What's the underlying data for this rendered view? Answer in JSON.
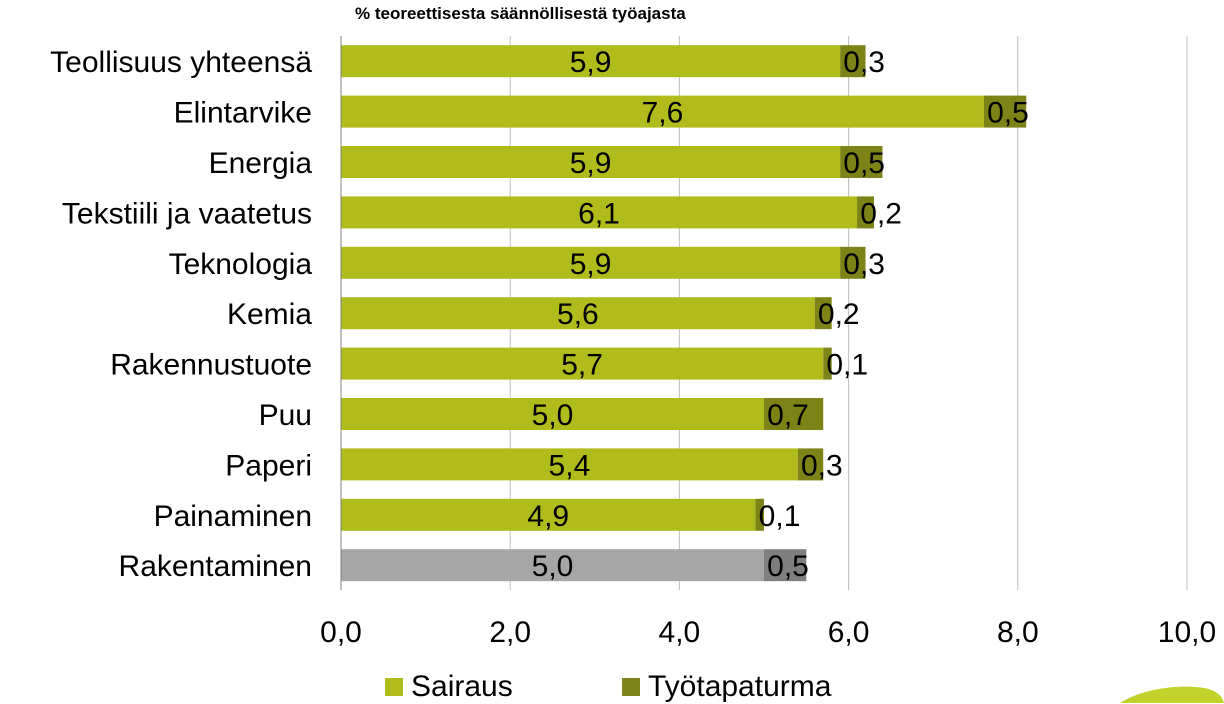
{
  "chart_data": {
    "type": "bar",
    "orientation": "horizontal",
    "stacked": true,
    "title": "",
    "subtitle": "% teoreettisesta säännöllisestä työajasta",
    "xlabel": "",
    "ylabel": "",
    "xlim": [
      0,
      10
    ],
    "x_ticks": [
      "0,0",
      "2,0",
      "4,0",
      "6,0",
      "8,0",
      "10,0"
    ],
    "grid": "vertical",
    "legend_position": "bottom",
    "categories": [
      "Teollisuus yhteensä",
      "Elintarvike",
      "Energia",
      "Tekstiili ja vaatetus",
      "Teknologia",
      "Kemia",
      "Rakennustuote",
      "Puu",
      "Paperi",
      "Painaminen",
      "Rakentaminen"
    ],
    "series": [
      {
        "name": "Sairaus",
        "color": "#b0bb1c",
        "values": [
          5.9,
          7.6,
          5.9,
          6.1,
          5.9,
          5.6,
          5.7,
          5.0,
          5.4,
          4.9,
          5.0
        ],
        "labels": [
          "5,9",
          "7,6",
          "5,9",
          "6,1",
          "5,9",
          "5,6",
          "5,7",
          "5,0",
          "5,4",
          "4,9",
          "5,0"
        ]
      },
      {
        "name": "Työtapaturma",
        "color": "#7d8317",
        "values": [
          0.3,
          0.5,
          0.5,
          0.2,
          0.3,
          0.2,
          0.1,
          0.7,
          0.3,
          0.1,
          0.5
        ],
        "labels": [
          "0,3",
          "0,5",
          "0,5",
          "0,2",
          "0,3",
          "0,2",
          "0,1",
          "0,7",
          "0,3",
          "0,1",
          "0,5"
        ]
      }
    ],
    "highlight": {
      "category": "Rakentaminen",
      "colors": [
        "#a6a6a6",
        "#7f7f7f"
      ]
    }
  },
  "legend": {
    "items": [
      {
        "label": "Sairaus",
        "color": "#b0bb1c"
      },
      {
        "label": "Työtapaturma",
        "color": "#7d8317"
      }
    ]
  },
  "colors": {
    "grid": "#bfbfbf",
    "axis": "#808080",
    "logo": "#c3d22b"
  }
}
